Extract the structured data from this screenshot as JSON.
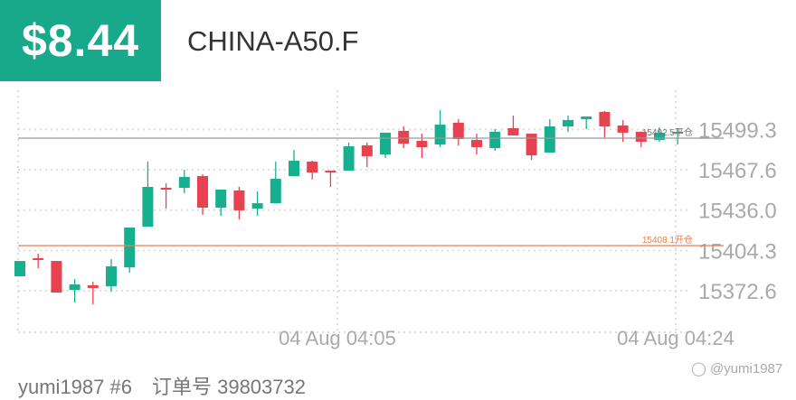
{
  "header": {
    "price": "$8.44",
    "symbol": "CHINA-A50.F",
    "accent_color": "#17a98a"
  },
  "chart_data": {
    "type": "candlestick",
    "y_ticks": [
      "15499.3",
      "15467.6",
      "15436.0",
      "15404.3",
      "15372.6"
    ],
    "x_ticks": [
      "04 Aug 04:05",
      "04 Aug 04:24"
    ],
    "grid": true,
    "colors": {
      "up": "#17b08f",
      "down": "#e8414f",
      "close_line": "#999999",
      "open_line": "#f07a4a"
    },
    "close_line": {
      "value": 15492.5,
      "label": "15492.5平仓"
    },
    "open_line": {
      "value": 15408.1,
      "label": "15408.1开仓"
    },
    "candles": [
      [
        15384.0,
        15396.0,
        15384.0,
        15396.0
      ],
      [
        15398.2,
        15401.7,
        15390.4,
        15397.5
      ],
      [
        15396.0,
        15396.0,
        15371.2,
        15371.2
      ],
      [
        15373.3,
        15381.9,
        15363.4,
        15377.6
      ],
      [
        15376.9,
        15379.7,
        15362.0,
        15374.8
      ],
      [
        15376.2,
        15397.5,
        15371.9,
        15391.8
      ],
      [
        15391.0,
        15422.3,
        15386.8,
        15422.3
      ],
      [
        15423.0,
        15474.1,
        15423.0,
        15454.2
      ],
      [
        15453.5,
        15457.0,
        15437.2,
        15452.1
      ],
      [
        15453.5,
        15467.7,
        15449.2,
        15462.0
      ],
      [
        15462.7,
        15464.1,
        15432.2,
        15437.9
      ],
      [
        15437.9,
        15452.1,
        15431.5,
        15452.1
      ],
      [
        15451.4,
        15454.2,
        15428.7,
        15435.8
      ],
      [
        15437.2,
        15450.7,
        15431.5,
        15441.4
      ],
      [
        15441.4,
        15474.1,
        15441.4,
        15460.6
      ],
      [
        15462.7,
        15483.3,
        15462.7,
        15474.8
      ],
      [
        15474.1,
        15474.8,
        15459.9,
        15465.5
      ],
      [
        15467.0,
        15467.0,
        15454.2,
        15466.3
      ],
      [
        15467.0,
        15489.0,
        15467.0,
        15486.1
      ],
      [
        15486.8,
        15489.0,
        15469.8,
        15478.3
      ],
      [
        15479.7,
        15496.8,
        15476.9,
        15496.8
      ],
      [
        15498.2,
        15501.7,
        15484.7,
        15488.2
      ],
      [
        15490.4,
        15496.0,
        15476.9,
        15485.4
      ],
      [
        15487.5,
        15514.5,
        15485.4,
        15503.1
      ],
      [
        15504.6,
        15507.4,
        15486.8,
        15491.8
      ],
      [
        15491.1,
        15496.0,
        15479.7,
        15485.4
      ],
      [
        15484.7,
        15499.6,
        15482.6,
        15497.5
      ],
      [
        15500.3,
        15510.2,
        15494.6,
        15494.6
      ],
      [
        15496.0,
        15496.0,
        15475.5,
        15479.0
      ],
      [
        15481.2,
        15507.4,
        15481.2,
        15501.7
      ],
      [
        15501.7,
        15510.2,
        15497.5,
        15506.7
      ],
      [
        15507.4,
        15509.5,
        15499.6,
        15509.5
      ],
      [
        15513.1,
        15513.8,
        15492.5,
        15501.7
      ],
      [
        15502.4,
        15506.7,
        15489.7,
        15496.8
      ],
      [
        15497.5,
        15497.5,
        15485.4,
        15489.7
      ],
      [
        15491.1,
        15501.0,
        15489.7,
        15496.8
      ],
      [
        15496.8,
        15500.3,
        15487.5,
        15497.5
      ]
    ]
  },
  "footer": {
    "user": "yumi1987 #6",
    "order_label": "订单号 39803732",
    "watermark": "@yumi1987"
  }
}
